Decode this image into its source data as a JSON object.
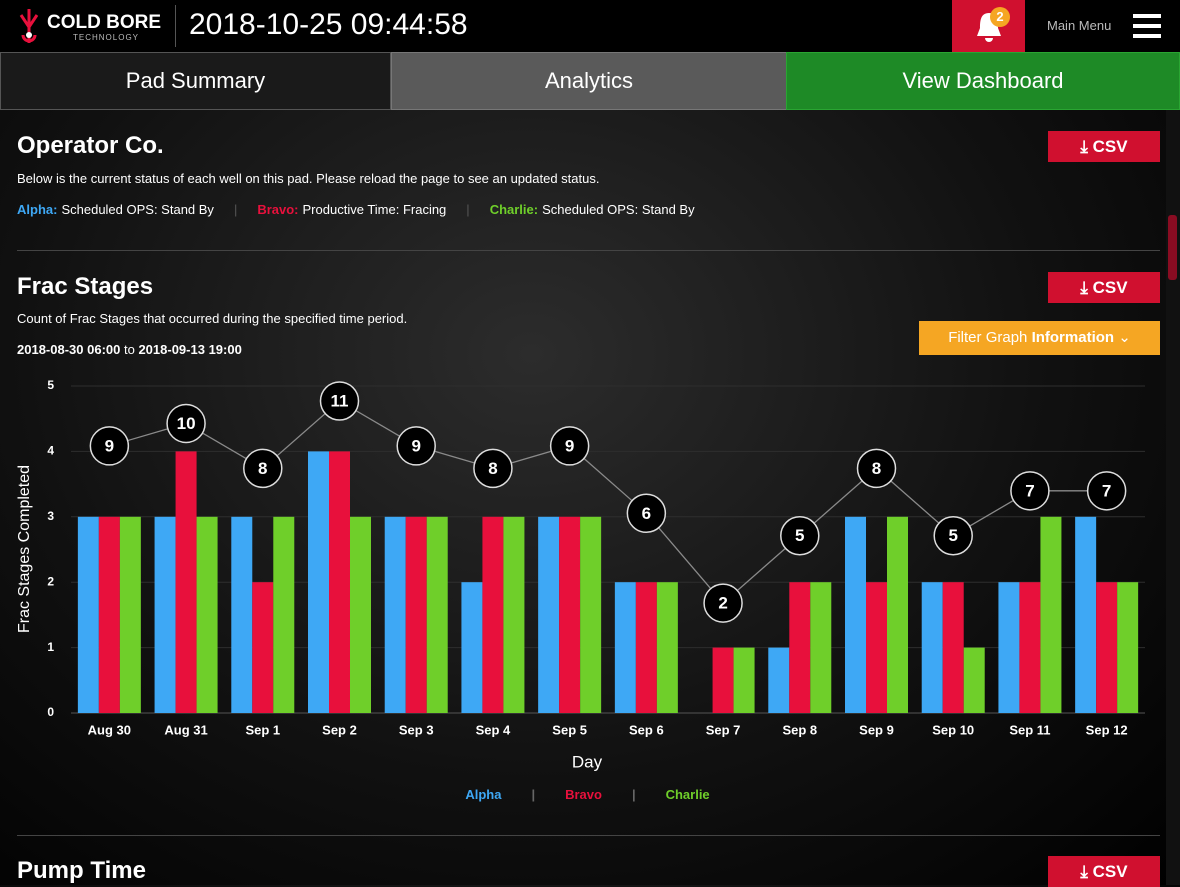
{
  "header": {
    "brand": "COLD BORE",
    "brand_sub": "TECHNOLOGY",
    "timestamp": "2018-10-25 09:44:58",
    "notification_count": 2,
    "menu": "Main Menu"
  },
  "tabs": [
    "Pad Summary",
    "Analytics",
    "View Dashboard"
  ],
  "operator": {
    "title": "Operator Co.",
    "csv": "CSV",
    "description": "Below is the current status of each well on this pad. Please reload the page to see an updated status.",
    "statuses": [
      {
        "well": "Alpha:",
        "status": "Scheduled OPS: Stand By",
        "color": "#3ea8f5"
      },
      {
        "well": "Bravo:",
        "status": "Productive Time: Fracing",
        "color": "#e8103c"
      },
      {
        "well": "Charlie:",
        "status": "Scheduled OPS: Stand By",
        "color": "#6fcf2a"
      }
    ]
  },
  "chart_data": {
    "type": "bar",
    "title": "Frac Stages",
    "csv": "CSV",
    "subtitle": "Count of Frac Stages that occurred during the specified time period.",
    "range_start": "2018-08-30 06:00",
    "range_connector": "to",
    "range_end": "2018-09-13 19:00",
    "filter_label": "Filter Graph",
    "filter_label_bold": "Information",
    "xlabel": "Day",
    "ylabel": "Frac Stages Completed",
    "categories": [
      "Aug 30",
      "Aug 31",
      "Sep 1",
      "Sep 2",
      "Sep 3",
      "Sep 4",
      "Sep 5",
      "Sep 6",
      "Sep 7",
      "Sep 8",
      "Sep 9",
      "Sep 10",
      "Sep 11",
      "Sep 12"
    ],
    "series": [
      {
        "name": "Alpha",
        "color": "#3ea8f5",
        "values": [
          3,
          3,
          3,
          4,
          3,
          2,
          3,
          2,
          0,
          1,
          3,
          2,
          2,
          3
        ]
      },
      {
        "name": "Bravo",
        "color": "#e8103c",
        "values": [
          3,
          4,
          2,
          4,
          3,
          3,
          3,
          2,
          1,
          2,
          2,
          2,
          2,
          2
        ]
      },
      {
        "name": "Charlie",
        "color": "#6fcf2a",
        "values": [
          3,
          3,
          3,
          3,
          3,
          3,
          3,
          2,
          1,
          2,
          3,
          1,
          3,
          2
        ]
      }
    ],
    "totals": [
      9,
      10,
      8,
      11,
      9,
      8,
      9,
      6,
      2,
      5,
      8,
      5,
      7,
      7
    ],
    "ylim": [
      0,
      5
    ],
    "yticks": [
      0,
      1,
      2,
      3,
      4,
      5
    ],
    "grid": true
  },
  "next_section": {
    "title": "Pump Time",
    "csv": "CSV"
  }
}
